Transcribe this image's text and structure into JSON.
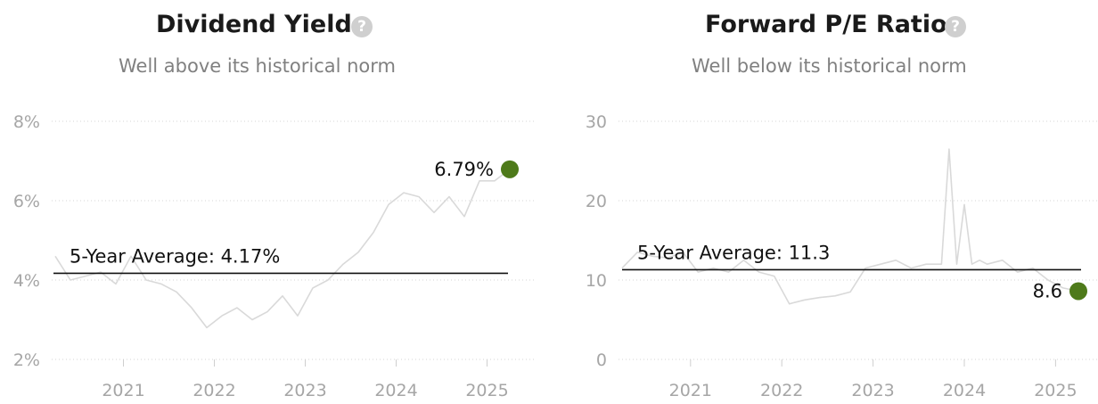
{
  "chart_data": [
    {
      "type": "line",
      "title": "Dividend Yield",
      "subtitle": "Well above its historical norm",
      "yticks": [
        "2%",
        "4%",
        "6%",
        "8%"
      ],
      "ytick_values": [
        2,
        4,
        6,
        8
      ],
      "ylim": [
        2,
        8
      ],
      "xticks": [
        "2021",
        "2022",
        "2023",
        "2024",
        "2025"
      ],
      "xlim": [
        "2020-04",
        "2025-04"
      ],
      "average": {
        "label": "5-Year Average: 4.17%",
        "value": 4.17
      },
      "current": {
        "label": "6.79%",
        "value": 6.79,
        "x": "2025-04"
      },
      "series_color": "#d9d9d9",
      "marker_color": "#4e7a1a",
      "grid": true,
      "series": [
        {
          "x": [
            "2020-04",
            "2020-06",
            "2020-08",
            "2020-10",
            "2020-12",
            "2021-02",
            "2021-04",
            "2021-06",
            "2021-08",
            "2021-10",
            "2021-12",
            "2022-02",
            "2022-04",
            "2022-06",
            "2022-08",
            "2022-10",
            "2022-12",
            "2023-02",
            "2023-04",
            "2023-06",
            "2023-08",
            "2023-10",
            "2023-12",
            "2024-02",
            "2024-04",
            "2024-06",
            "2024-08",
            "2024-10",
            "2024-12",
            "2025-02",
            "2025-04"
          ],
          "values": [
            4.6,
            4.0,
            4.1,
            4.2,
            3.9,
            4.6,
            4.0,
            3.9,
            3.7,
            3.3,
            2.8,
            3.1,
            3.3,
            3.0,
            3.2,
            3.6,
            3.1,
            3.8,
            4.0,
            4.4,
            4.7,
            5.2,
            5.9,
            6.2,
            6.1,
            5.7,
            6.1,
            5.6,
            6.5,
            6.5,
            6.79
          ]
        }
      ]
    },
    {
      "type": "line",
      "title": "Forward P/E Ratio",
      "subtitle": "Well below its historical norm",
      "yticks": [
        "0",
        "10",
        "20",
        "30"
      ],
      "ytick_values": [
        0,
        10,
        20,
        30
      ],
      "ylim": [
        0,
        30
      ],
      "xticks": [
        "2021",
        "2022",
        "2023",
        "2024",
        "2025"
      ],
      "xlim": [
        "2020-04",
        "2025-04"
      ],
      "average": {
        "label": "5-Year Average: 11.3",
        "value": 11.3
      },
      "current": {
        "label": "8.6",
        "value": 8.6,
        "x": "2025-04"
      },
      "series_color": "#d9d9d9",
      "marker_color": "#4e7a1a",
      "grid": true,
      "series": [
        {
          "x": [
            "2020-04",
            "2020-06",
            "2020-08",
            "2020-10",
            "2020-12",
            "2021-02",
            "2021-04",
            "2021-06",
            "2021-08",
            "2021-10",
            "2021-12",
            "2022-02",
            "2022-04",
            "2022-06",
            "2022-08",
            "2022-10",
            "2022-12",
            "2023-02",
            "2023-04",
            "2023-06",
            "2023-08",
            "2023-10",
            "2023-11",
            "2023-12",
            "2024-01",
            "2024-02",
            "2024-03",
            "2024-04",
            "2024-06",
            "2024-08",
            "2024-10",
            "2024-12",
            "2025-02",
            "2025-04"
          ],
          "values": [
            11.5,
            13.5,
            13.0,
            12.8,
            13.5,
            11.0,
            11.5,
            11.0,
            12.5,
            11.0,
            10.5,
            7.0,
            7.5,
            7.8,
            8.0,
            8.5,
            11.5,
            12.0,
            12.5,
            11.5,
            12.0,
            12.0,
            26.5,
            12.0,
            19.5,
            12.0,
            12.5,
            12.0,
            12.5,
            11.0,
            11.5,
            10.0,
            9.0,
            8.6
          ]
        }
      ]
    }
  ]
}
